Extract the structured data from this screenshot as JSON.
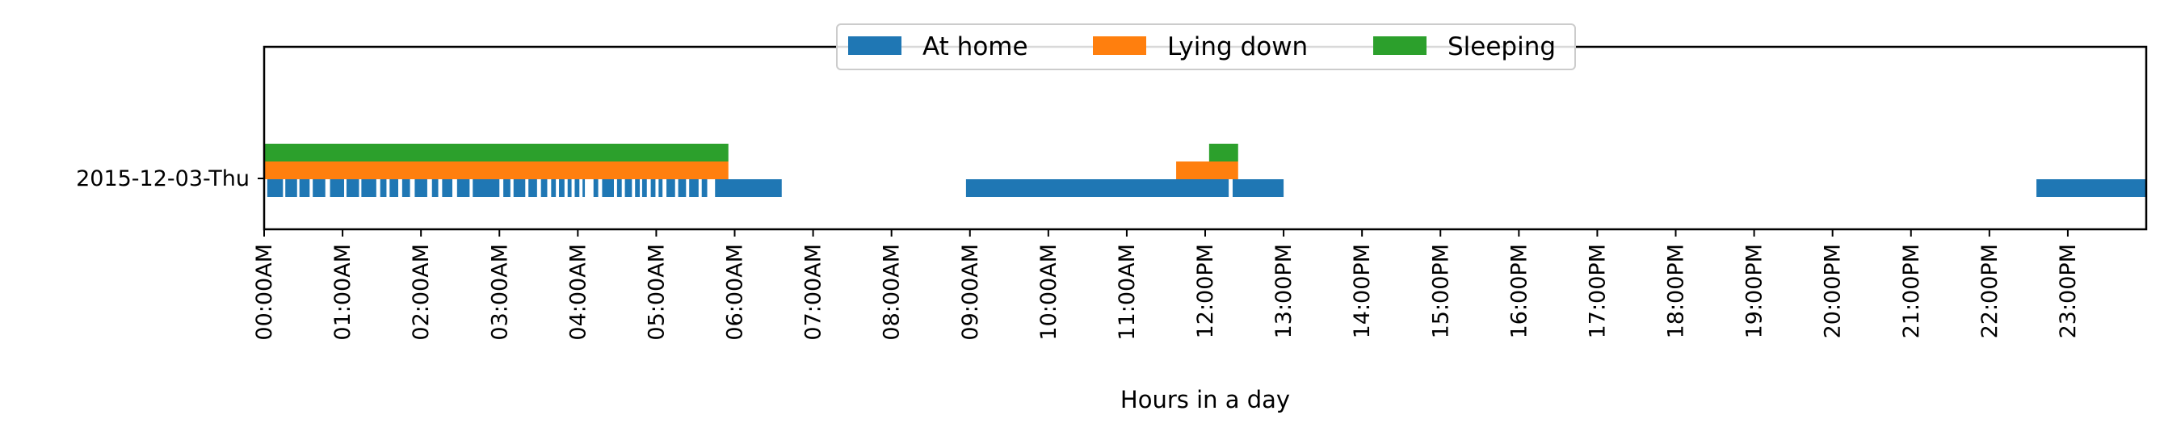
{
  "chart_data": {
    "type": "bar",
    "orientation": "horizontal-timeline",
    "categories": [
      "2015-12-03-Thu"
    ],
    "xlabel": "Hours in a day",
    "ylabel": "",
    "xlim": [
      0,
      24
    ],
    "x_ticks": [
      "00:00AM",
      "01:00AM",
      "02:00AM",
      "03:00AM",
      "04:00AM",
      "05:00AM",
      "06:00AM",
      "07:00AM",
      "08:00AM",
      "09:00AM",
      "10:00AM",
      "11:00AM",
      "12:00PM",
      "13:00PM",
      "14:00PM",
      "15:00PM",
      "16:00PM",
      "17:00PM",
      "18:00PM",
      "19:00PM",
      "20:00PM",
      "21:00PM",
      "22:00PM",
      "23:00PM"
    ],
    "grid": false,
    "legend_position": "top-center",
    "series": [
      {
        "name": "At home",
        "color": "#1f77b4",
        "intervals": [
          [
            0.04,
            0.24
          ],
          [
            0.27,
            0.42
          ],
          [
            0.45,
            0.58
          ],
          [
            0.62,
            0.78
          ],
          [
            0.84,
            1.02
          ],
          [
            1.05,
            1.21
          ],
          [
            1.24,
            1.43
          ],
          [
            1.48,
            1.56
          ],
          [
            1.6,
            1.71
          ],
          [
            1.76,
            1.86
          ],
          [
            1.92,
            2.08
          ],
          [
            2.14,
            2.22
          ],
          [
            2.27,
            2.4
          ],
          [
            2.46,
            2.62
          ],
          [
            2.66,
            3.0
          ],
          [
            3.05,
            3.14
          ],
          [
            3.18,
            3.33
          ],
          [
            3.37,
            3.48
          ],
          [
            3.53,
            3.61
          ],
          [
            3.66,
            3.72
          ],
          [
            3.76,
            3.83
          ],
          [
            3.87,
            3.92
          ],
          [
            3.96,
            4.02
          ],
          [
            4.06,
            4.09
          ],
          [
            4.2,
            4.26
          ],
          [
            4.31,
            4.46
          ],
          [
            4.5,
            4.56
          ],
          [
            4.6,
            4.69
          ],
          [
            4.73,
            4.79
          ],
          [
            4.82,
            4.88
          ],
          [
            4.93,
            4.99
          ],
          [
            5.03,
            5.08
          ],
          [
            5.13,
            5.24
          ],
          [
            5.28,
            5.38
          ],
          [
            5.42,
            5.54
          ],
          [
            5.58,
            5.65
          ],
          [
            5.75,
            6.6
          ],
          [
            8.95,
            12.3
          ],
          [
            12.35,
            13.0
          ],
          [
            22.6,
            24.0
          ]
        ]
      },
      {
        "name": "Lying down",
        "color": "#ff7f0e",
        "intervals": [
          [
            0.0,
            5.92
          ],
          [
            11.63,
            12.42
          ]
        ]
      },
      {
        "name": "Sleeping",
        "color": "#2ca02c",
        "intervals": [
          [
            0.0,
            5.92
          ],
          [
            12.05,
            12.42
          ]
        ]
      }
    ]
  }
}
